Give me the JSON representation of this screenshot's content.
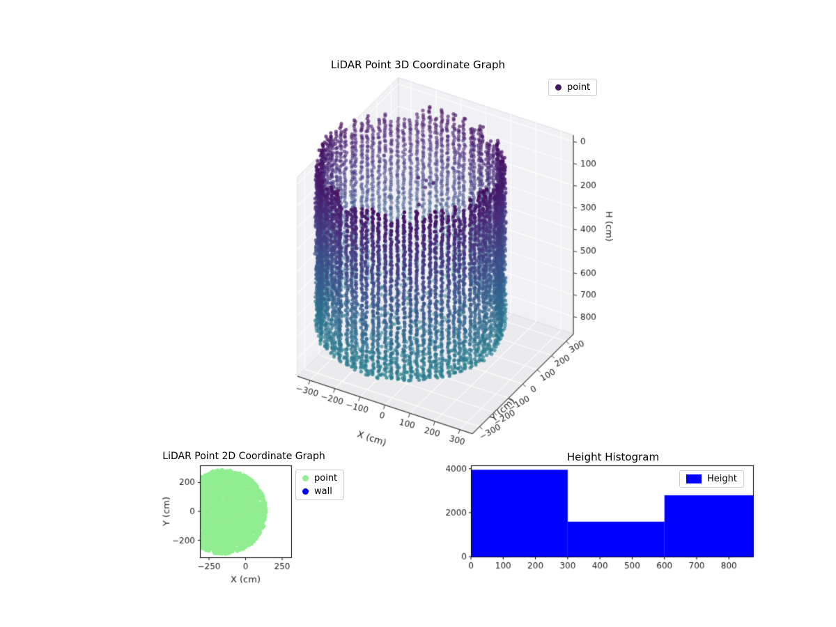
{
  "page": {
    "background": "#ffffff"
  },
  "chart_data": [
    {
      "type": "scatter3d",
      "title": "LiDAR Point 3D Coordinate Graph",
      "xlabel": "X (cm)",
      "ylabel": "Y (cm)",
      "zlabel": "H (cm)",
      "xticks": [
        -300,
        -200,
        -100,
        0,
        100,
        200,
        300
      ],
      "yticks": [
        -300,
        -200,
        -100,
        0,
        100,
        200,
        300
      ],
      "hticks": [
        0,
        100,
        200,
        300,
        400,
        500,
        600,
        700,
        800
      ],
      "xlim": [
        -350,
        350
      ],
      "ylim": [
        -350,
        350
      ],
      "hlim": [
        -30,
        880
      ],
      "h_axis_inverted": true,
      "legend": [
        {
          "label": "point",
          "color": "#3f1b63"
        }
      ],
      "colormap": "viridis",
      "cloud": {
        "shape": "cylindrical room point cloud, colored by height (dark purple top to teal bottom)",
        "center_x": -100,
        "center_y": 0,
        "radius": 320,
        "angle_step_deg": 4,
        "h_step": 11,
        "rim_h_min": 15,
        "rim_h_max": 95,
        "wall_bottom_h": 790,
        "floor_h_edge": 795,
        "floor_bowl_depth": 55,
        "floor_ring_step": 29,
        "floor_point_spacing": 26,
        "jitter_xy": 7,
        "jitter_h": 4,
        "marker_px": 2.6,
        "color_t_min": 0.03,
        "color_t_max": 0.52,
        "h_color_range": [
          0,
          860
        ],
        "seed": 42,
        "extra_points": [
          [
            -60,
            40,
            130
          ],
          [
            -45,
            65,
            150
          ],
          [
            -55,
            78,
            166
          ],
          [
            -72,
            55,
            176
          ],
          [
            -85,
            30,
            120
          ],
          [
            15,
            -140,
            95
          ],
          [
            -255,
            120,
            330
          ],
          [
            -235,
            100,
            362
          ]
        ]
      }
    },
    {
      "type": "scatter",
      "title": "LiDAR Point 2D Coordinate Graph",
      "xlabel": "X (cm)",
      "ylabel": "Y (cm)",
      "xticks": [
        -250,
        0,
        250
      ],
      "yticks": [
        -200,
        0,
        200
      ],
      "xlim": [
        -312,
        312
      ],
      "ylim": [
        -318,
        318
      ],
      "series": [
        {
          "label": "point",
          "color": "#90ee90",
          "shape": "disc",
          "center": [
            -150,
            -5
          ],
          "radius": 292,
          "n_points": 3200,
          "marker_px": 2.6,
          "seed": 7
        },
        {
          "label": "wall",
          "color": "#0000ff",
          "shape": "none",
          "points": []
        }
      ]
    },
    {
      "type": "bar",
      "title": "Height Histogram",
      "bar_color": "#0000ff",
      "bins": [
        {
          "start": 0,
          "end": 300,
          "value": 3950
        },
        {
          "start": 300,
          "end": 600,
          "value": 1590
        },
        {
          "start": 600,
          "end": 875,
          "value": 2790
        }
      ],
      "xticks": [
        0,
        100,
        200,
        300,
        400,
        500,
        600,
        700,
        800
      ],
      "yticks": [
        0,
        2000,
        4000
      ],
      "xlim": [
        0,
        875
      ],
      "ylim": [
        0,
        4150
      ],
      "legend": [
        {
          "label": "Height",
          "color": "#0000ff"
        }
      ]
    }
  ]
}
